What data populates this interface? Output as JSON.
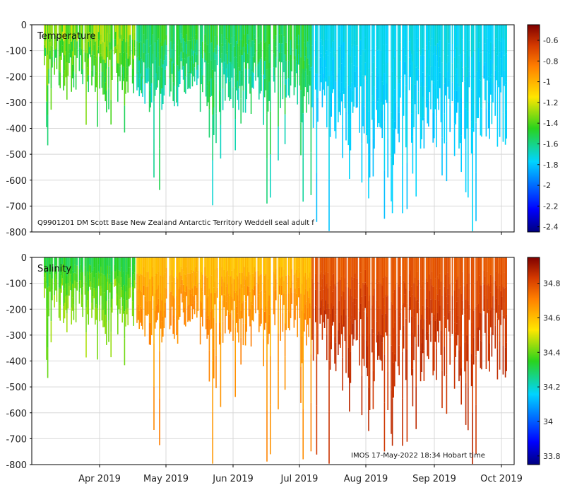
{
  "chart_data": [
    {
      "type": "heatmap",
      "title": "",
      "panel_label": "Temperature",
      "variable": "temperature",
      "ylabel": "",
      "xlabel": "",
      "ylim": [
        -800,
        0
      ],
      "y_ticks": [
        0,
        -100,
        -200,
        -300,
        -400,
        -500,
        -600,
        -700,
        -800
      ],
      "colorbar": {
        "range": [
          -2.45,
          -0.45
        ],
        "ticks": [
          -0.6,
          -0.8,
          -1,
          -1.2,
          -1.4,
          -1.6,
          -1.8,
          -2,
          -2.2,
          -2.4
        ]
      },
      "annotation": "Q9901201 DM Scott Base New Zealand Antarctic Territory Weddell seal adult f",
      "profiles_summary": {
        "early_march": {
          "max_depth": 500,
          "value_range": [
            -1.8,
            -1.2
          ]
        },
        "april_june": {
          "max_depth": 700,
          "value_range": [
            -1.9,
            -1.4
          ]
        },
        "july_september": {
          "max_depth": 800,
          "value_range": [
            -1.9,
            -1.7
          ]
        }
      }
    },
    {
      "type": "heatmap",
      "title": "",
      "panel_label": "Salinity",
      "variable": "salinity",
      "ylabel": "",
      "xlabel": "",
      "ylim": [
        -800,
        0
      ],
      "y_ticks": [
        0,
        -100,
        -200,
        -300,
        -400,
        -500,
        -600,
        -700,
        -800
      ],
      "x_ticks": [
        "Apr 2019",
        "May 2019",
        "Jun 2019",
        "Jul 2019",
        "Aug 2019",
        "Sep 2019",
        "Oct 2019"
      ],
      "colorbar": {
        "range": [
          33.75,
          34.95
        ],
        "ticks": [
          34.8,
          34.6,
          34.4,
          34.2,
          34,
          33.8
        ]
      },
      "annotation": "IMOS 17-May-2022 18:34 Hobart time",
      "profiles_summary": {
        "early_march": {
          "max_depth": 500,
          "value_range": [
            34.2,
            34.5
          ]
        },
        "april_june": {
          "max_depth": 800,
          "value_range": [
            34.5,
            34.75
          ]
        },
        "july_september": {
          "max_depth": 800,
          "value_range": [
            34.7,
            34.9
          ]
        }
      }
    }
  ]
}
